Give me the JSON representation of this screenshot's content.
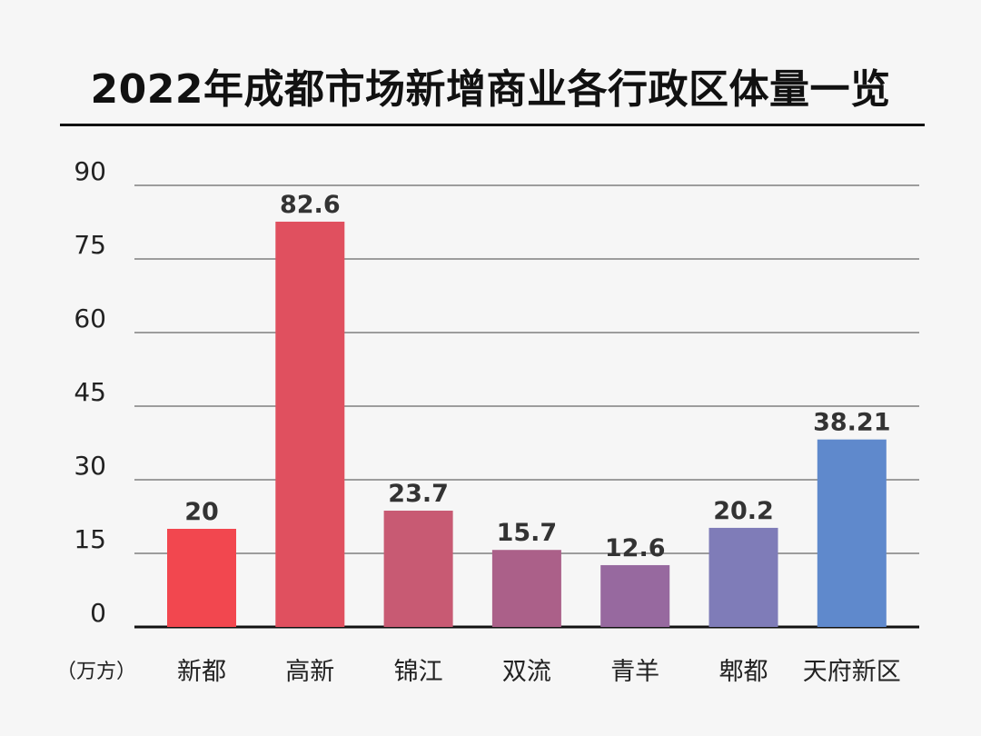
{
  "chart_data": {
    "type": "bar",
    "title": "2022年成都市场新增商业各行政区体量一览",
    "unit": "（万方）",
    "categories": [
      "新都",
      "高新",
      "锦江",
      "双流",
      "青羊",
      "郫都",
      "天府新区"
    ],
    "values": [
      20,
      82.6,
      23.7,
      15.7,
      12.6,
      20.2,
      38.21
    ],
    "value_labels": [
      "20",
      "82.6",
      "23.7",
      "15.7",
      "12.6",
      "20.2",
      "38.21"
    ],
    "ylim": [
      0,
      90
    ],
    "yticks": [
      0,
      15,
      30,
      45,
      60,
      75,
      90
    ],
    "grid": true,
    "bar_colors": [
      "#f2474f",
      "#e0505f",
      "#c85a73",
      "#ab6089",
      "#97699f",
      "#7f7cb8",
      "#5f89cc"
    ]
  }
}
